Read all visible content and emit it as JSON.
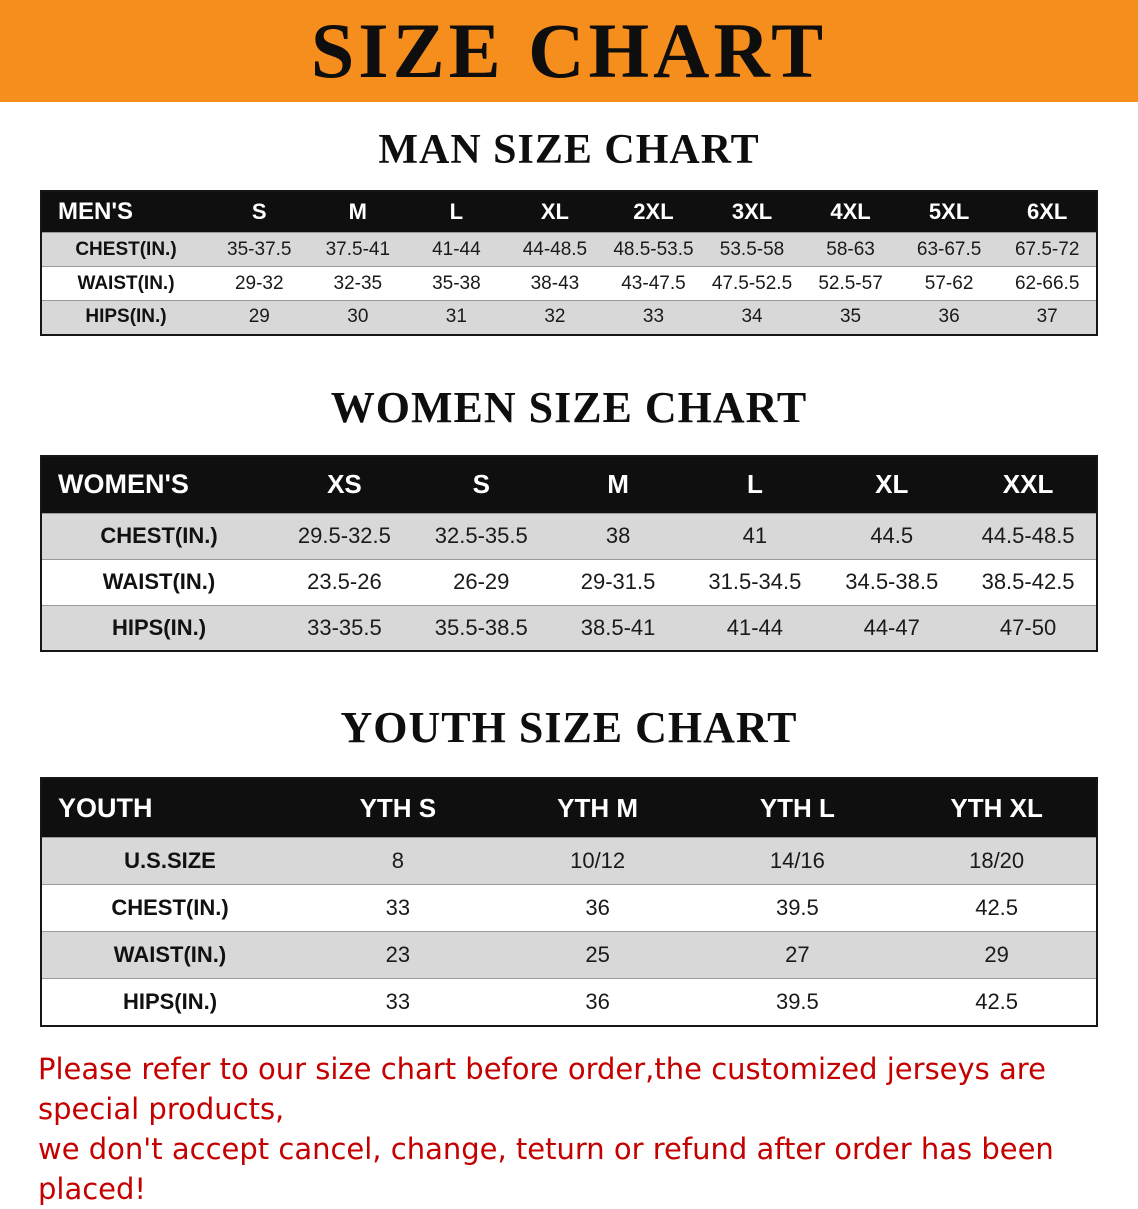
{
  "banner": {
    "title": "SIZE CHART"
  },
  "sections": [
    {
      "heading": "MAN SIZE CHART",
      "table": {
        "header": [
          "MEN'S",
          "S",
          "M",
          "L",
          "XL",
          "2XL",
          "3XL",
          "4XL",
          "5XL",
          "6XL"
        ],
        "rows": [
          [
            "CHEST(IN.)",
            "35-37.5",
            "37.5-41",
            "41-44",
            "44-48.5",
            "48.5-53.5",
            "53.5-58",
            "58-63",
            "63-67.5",
            "67.5-72"
          ],
          [
            "WAIST(IN.)",
            "29-32",
            "32-35",
            "35-38",
            "38-43",
            "43-47.5",
            "47.5-52.5",
            "52.5-57",
            "57-62",
            "62-66.5"
          ],
          [
            "HIPS(IN.)",
            "29",
            "30",
            "31",
            "32",
            "33",
            "34",
            "35",
            "36",
            "37"
          ]
        ]
      }
    },
    {
      "heading": "WOMEN SIZE CHART",
      "table": {
        "header": [
          "WOMEN'S",
          "XS",
          "S",
          "M",
          "L",
          "XL",
          "XXL"
        ],
        "rows": [
          [
            "CHEST(IN.)",
            "29.5-32.5",
            "32.5-35.5",
            "38",
            "41",
            "44.5",
            "44.5-48.5"
          ],
          [
            "WAIST(IN.)",
            "23.5-26",
            "26-29",
            "29-31.5",
            "31.5-34.5",
            "34.5-38.5",
            "38.5-42.5"
          ],
          [
            "HIPS(IN.)",
            "33-35.5",
            "35.5-38.5",
            "38.5-41",
            "41-44",
            "44-47",
            "47-50"
          ]
        ]
      }
    },
    {
      "heading": "YOUTH SIZE CHART",
      "table": {
        "header": [
          "YOUTH",
          "YTH S",
          "YTH M",
          "YTH L",
          "YTH XL"
        ],
        "rows": [
          [
            "U.S.SIZE",
            "8",
            "10/12",
            "14/16",
            "18/20"
          ],
          [
            "CHEST(IN.)",
            "33",
            "36",
            "39.5",
            "42.5"
          ],
          [
            "WAIST(IN.)",
            "23",
            "25",
            "27",
            "29"
          ],
          [
            "HIPS(IN.)",
            "33",
            "36",
            "39.5",
            "42.5"
          ]
        ]
      }
    }
  ],
  "disclaimer": {
    "line1": "Please refer to our size chart before order,the customized jerseys are special products,",
    "line2": "we don't accept cancel, change, teturn or refund after order has been placed!"
  },
  "colors": {
    "banner_bg": "#F68E1E",
    "heading_text": "#0E0E0E",
    "table_header_bg": "#0F0F0F",
    "table_header_text": "#FFFFFF",
    "row_alt_bg": "#D8D8D8",
    "disclaimer_text": "#C40000"
  }
}
